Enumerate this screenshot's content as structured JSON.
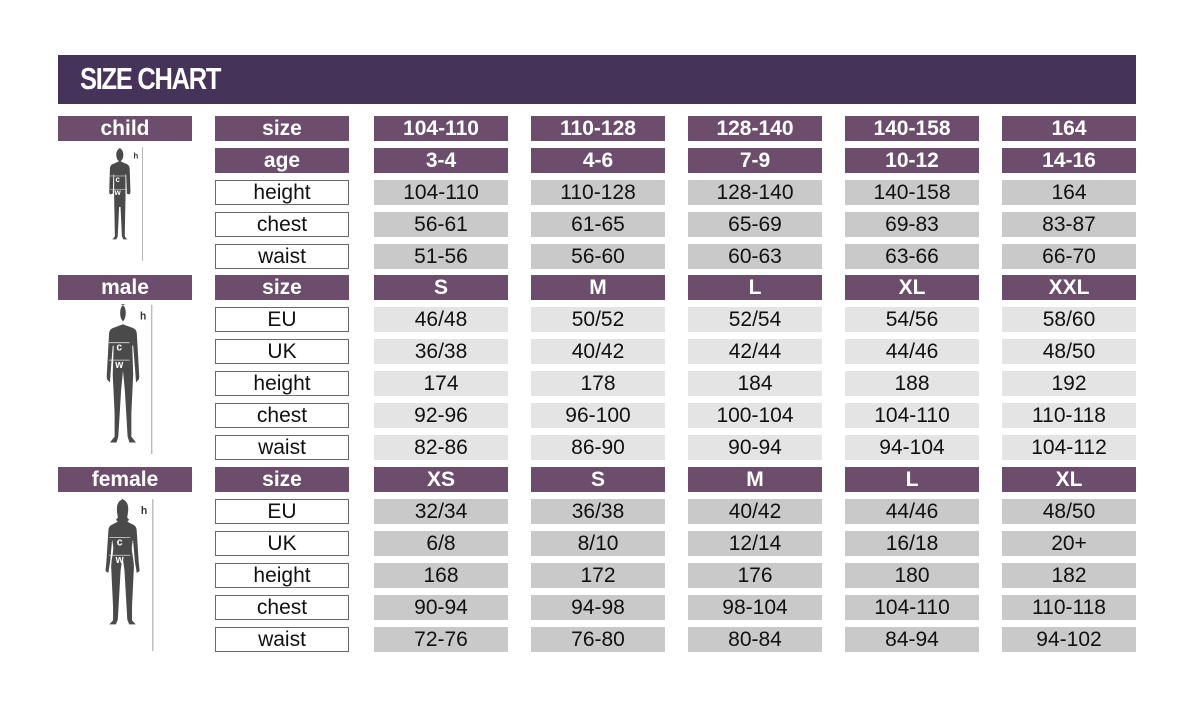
{
  "title": "SIZE CHART",
  "colors": {
    "title_bar": "#45335a",
    "header_cell": "#6d4d6c",
    "value_dark": "#c9c9c9",
    "value_light": "#e4e4e4"
  },
  "figure_labels": {
    "height": "h",
    "chest": "c",
    "waist": "w"
  },
  "sections": [
    {
      "name": "child",
      "figure_icon": "child-silhouette-icon",
      "shade": "dark",
      "rows": [
        {
          "label": "size",
          "header": true,
          "values": [
            "104-110",
            "110-128",
            "128-140",
            "140-158",
            "164"
          ]
        },
        {
          "label": "age",
          "header": true,
          "values": [
            "3-4",
            "4-6",
            "7-9",
            "10-12",
            "14-16"
          ]
        },
        {
          "label": "height",
          "values": [
            "104-110",
            "110-128",
            "128-140",
            "140-158",
            "164"
          ]
        },
        {
          "label": "chest",
          "values": [
            "56-61",
            "61-65",
            "65-69",
            "69-83",
            "83-87"
          ]
        },
        {
          "label": "waist",
          "values": [
            "51-56",
            "56-60",
            "60-63",
            "63-66",
            "66-70"
          ]
        }
      ]
    },
    {
      "name": "male",
      "figure_icon": "male-silhouette-icon",
      "shade": "light",
      "rows": [
        {
          "label": "size",
          "header": true,
          "values": [
            "S",
            "M",
            "L",
            "XL",
            "XXL"
          ]
        },
        {
          "label": "EU",
          "values": [
            "46/48",
            "50/52",
            "52/54",
            "54/56",
            "58/60"
          ]
        },
        {
          "label": "UK",
          "values": [
            "36/38",
            "40/42",
            "42/44",
            "44/46",
            "48/50"
          ]
        },
        {
          "label": "height",
          "values": [
            "174",
            "178",
            "184",
            "188",
            "192"
          ]
        },
        {
          "label": "chest",
          "values": [
            "92-96",
            "96-100",
            "100-104",
            "104-110",
            "110-118"
          ]
        },
        {
          "label": "waist",
          "values": [
            "82-86",
            "86-90",
            "90-94",
            "94-104",
            "104-112"
          ]
        }
      ]
    },
    {
      "name": "female",
      "figure_icon": "female-silhouette-icon",
      "shade": "dark",
      "rows": [
        {
          "label": "size",
          "header": true,
          "values": [
            "XS",
            "S",
            "M",
            "L",
            "XL"
          ]
        },
        {
          "label": "EU",
          "values": [
            "32/34",
            "36/38",
            "40/42",
            "44/46",
            "48/50"
          ]
        },
        {
          "label": "UK",
          "values": [
            "6/8",
            "8/10",
            "12/14",
            "16/18",
            "20+"
          ]
        },
        {
          "label": "height",
          "values": [
            "168",
            "172",
            "176",
            "180",
            "182"
          ]
        },
        {
          "label": "chest",
          "values": [
            "90-94",
            "94-98",
            "98-104",
            "104-110",
            "110-118"
          ]
        },
        {
          "label": "waist",
          "values": [
            "72-76",
            "76-80",
            "80-84",
            "84-94",
            "94-102"
          ]
        }
      ]
    }
  ]
}
